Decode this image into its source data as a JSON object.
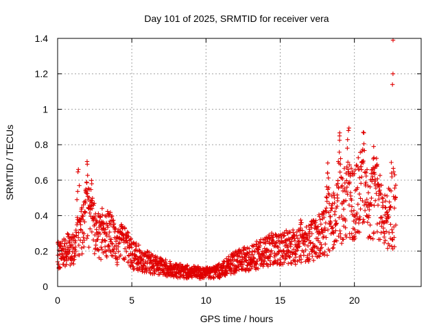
{
  "chart_data": {
    "type": "scatter",
    "title": "Day 101 of 2025, SRMTID for receiver vera",
    "xlabel": "GPS time / hours",
    "ylabel": "SRMTID / TECUs",
    "xlim": [
      0,
      24.5
    ],
    "ylim": [
      0,
      1.4
    ],
    "xticks": [
      0,
      5,
      10,
      15,
      20
    ],
    "yticks": [
      0,
      0.2,
      0.4,
      0.6,
      0.8,
      1,
      1.2,
      1.4
    ],
    "xtick_labels": [
      "0",
      "5",
      "10",
      "15",
      "20"
    ],
    "ytick_labels": [
      "0",
      "0.2",
      "0.4",
      "0.6",
      "0.8",
      "1",
      "1.2",
      "1.4"
    ],
    "grid": true,
    "marker": "+",
    "colors": {
      "series": "#e00000",
      "grid": "#a0a0a0",
      "axis": "#000000"
    },
    "series": [
      {
        "name": "SRMTID",
        "profile": {
          "x": [
            0,
            0.5,
            1.0,
            1.4,
            2.0,
            2.5,
            3.0,
            3.5,
            4.0,
            4.5,
            5.0,
            5.5,
            6.0,
            7.0,
            8.0,
            9.0,
            10.0,
            11.0,
            12.0,
            13.0,
            14.0,
            15.0,
            16.0,
            17.0,
            18.0,
            19.0,
            19.5,
            20.0,
            20.5,
            21.0,
            21.5,
            22.0,
            22.5,
            22.8
          ],
          "base": [
            0.17,
            0.21,
            0.2,
            0.27,
            0.4,
            0.32,
            0.27,
            0.32,
            0.22,
            0.25,
            0.18,
            0.16,
            0.14,
            0.11,
            0.09,
            0.08,
            0.075,
            0.09,
            0.14,
            0.16,
            0.2,
            0.22,
            0.22,
            0.25,
            0.3,
            0.42,
            0.5,
            0.45,
            0.55,
            0.45,
            0.5,
            0.4,
            0.38,
            0.4
          ]
        },
        "peaks": [
          {
            "x": 1.4,
            "y": 0.66
          },
          {
            "x": 2.0,
            "y": 0.69
          },
          {
            "x": 2.3,
            "y": 0.58
          },
          {
            "x": 3.0,
            "y": 0.44
          },
          {
            "x": 4.3,
            "y": 0.35
          },
          {
            "x": 16.4,
            "y": 0.36
          },
          {
            "x": 18.2,
            "y": 0.64
          },
          {
            "x": 19.0,
            "y": 0.85
          },
          {
            "x": 19.6,
            "y": 0.88
          },
          {
            "x": 20.6,
            "y": 0.87
          },
          {
            "x": 21.3,
            "y": 0.79
          },
          {
            "x": 22.6,
            "y": 1.2
          }
        ],
        "count": 1800
      }
    ]
  }
}
